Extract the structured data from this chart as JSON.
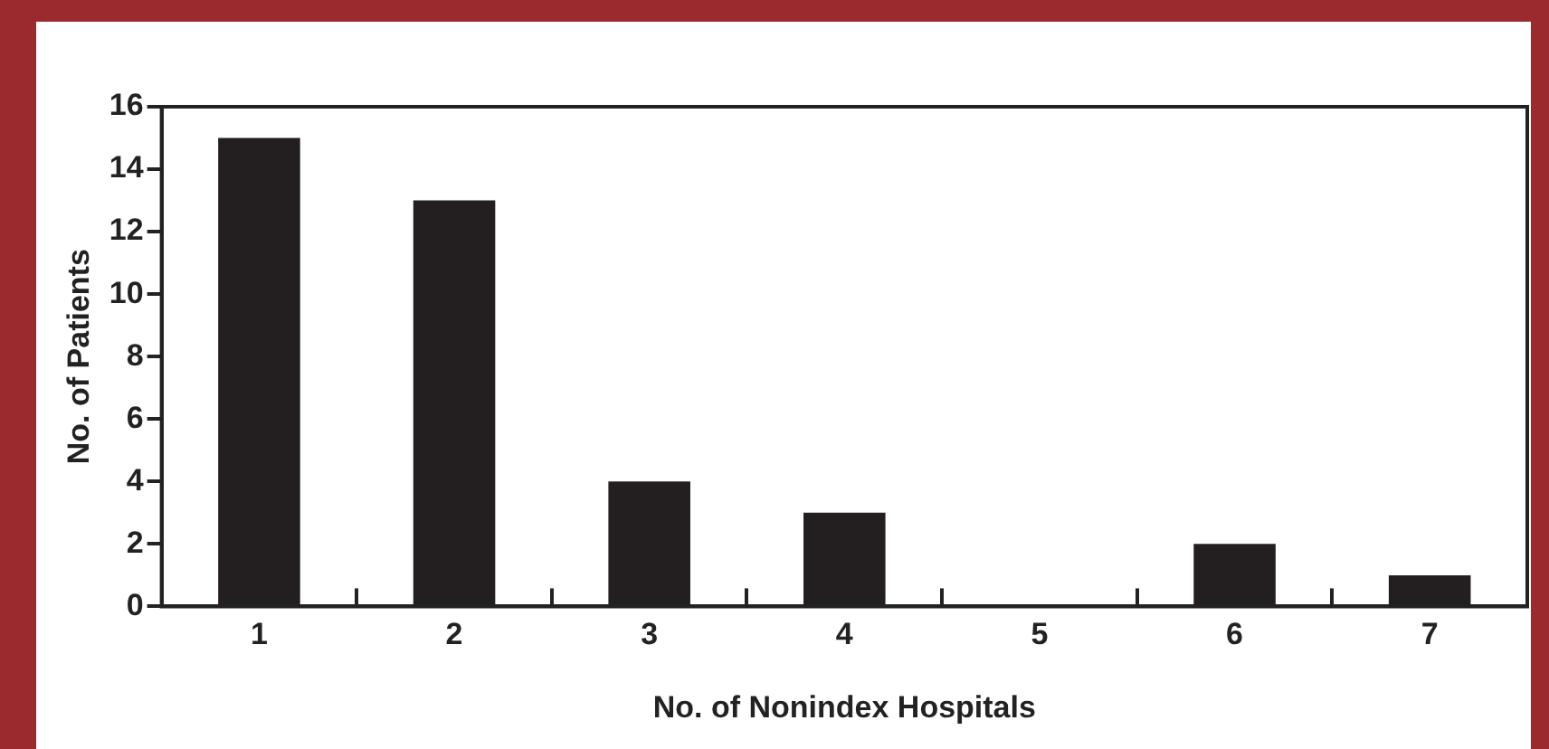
{
  "chart_data": {
    "type": "bar",
    "xlabel": "No. of Nonindex Hospitals",
    "ylabel": "No. of Patients",
    "categories": [
      "1",
      "2",
      "3",
      "4",
      "5",
      "6",
      "7"
    ],
    "values": [
      15,
      13,
      4,
      3,
      0,
      2,
      1
    ],
    "color": "#231f20",
    "ylim": [
      0,
      16
    ],
    "yticks": [
      0,
      2,
      4,
      6,
      8,
      10,
      12,
      14,
      16
    ],
    "grid": false
  }
}
